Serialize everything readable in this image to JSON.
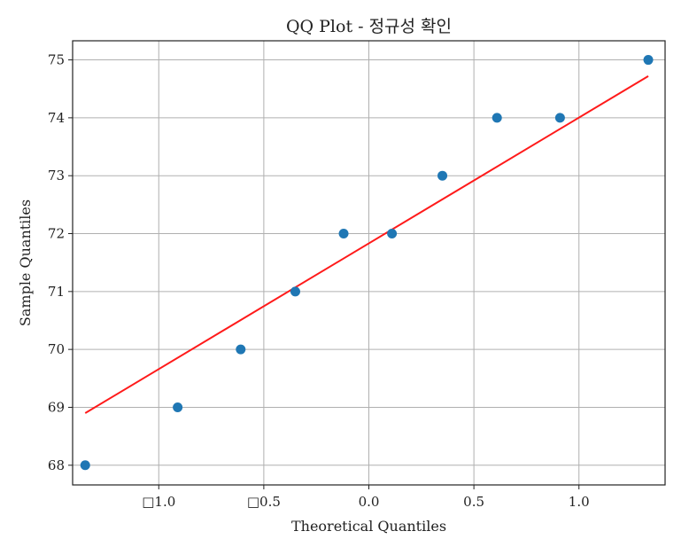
{
  "chart_data": {
    "type": "scatter",
    "title": "QQ Plot - 정규성 확인",
    "xlabel": "Theoretical Quantiles",
    "ylabel": "Sample Quantiles",
    "xlim": [
      -1.41,
      1.41
    ],
    "ylim": [
      67.66,
      75.33
    ],
    "grid": true,
    "x_ticks": [
      {
        "value": -1.0,
        "label": "□1.0"
      },
      {
        "value": -0.5,
        "label": "□0.5"
      },
      {
        "value": 0.0,
        "label": "0.0"
      },
      {
        "value": 0.5,
        "label": "0.5"
      },
      {
        "value": 1.0,
        "label": "1.0"
      }
    ],
    "y_ticks": [
      {
        "value": 68,
        "label": "68"
      },
      {
        "value": 69,
        "label": "69"
      },
      {
        "value": 70,
        "label": "70"
      },
      {
        "value": 71,
        "label": "71"
      },
      {
        "value": 72,
        "label": "72"
      },
      {
        "value": 73,
        "label": "73"
      },
      {
        "value": 74,
        "label": "74"
      },
      {
        "value": 75,
        "label": "75"
      }
    ],
    "series": [
      {
        "type": "scatter",
        "color": "#1f77b4",
        "points": [
          {
            "x": -1.35,
            "y": 68
          },
          {
            "x": -0.91,
            "y": 69
          },
          {
            "x": -0.61,
            "y": 70
          },
          {
            "x": -0.35,
            "y": 71
          },
          {
            "x": -0.12,
            "y": 72
          },
          {
            "x": 0.11,
            "y": 72
          },
          {
            "x": 0.35,
            "y": 73
          },
          {
            "x": 0.61,
            "y": 74
          },
          {
            "x": 0.91,
            "y": 74
          },
          {
            "x": 1.33,
            "y": 75
          }
        ]
      },
      {
        "type": "line",
        "color": "#ff1a1a",
        "points": [
          {
            "x": -1.35,
            "y": 68.9
          },
          {
            "x": 1.33,
            "y": 74.72
          }
        ]
      }
    ]
  }
}
